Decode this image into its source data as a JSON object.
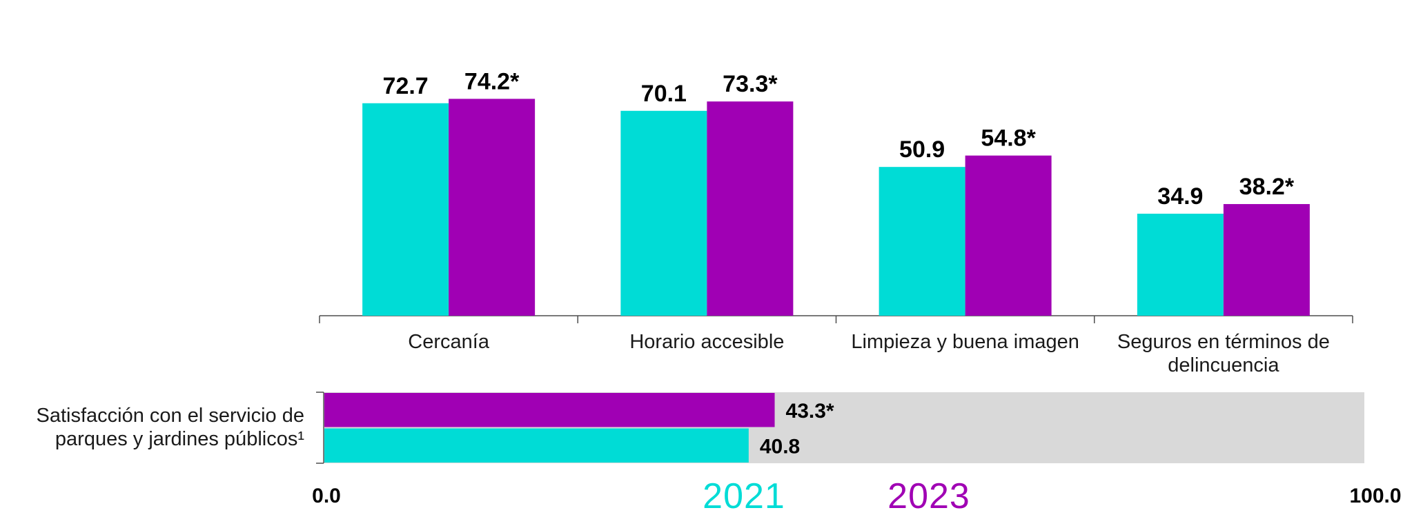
{
  "chart_data": [
    {
      "type": "bar",
      "categories": [
        [
          "Cercanía"
        ],
        [
          "Horario accesible"
        ],
        [
          "Limpieza y buena imagen"
        ],
        [
          "Seguros en términos de",
          "delincuencia"
        ]
      ],
      "series": [
        {
          "name": "2021",
          "color": "#00DCD6",
          "values": [
            72.7,
            70.1,
            50.9,
            34.9
          ],
          "labels": [
            "72.7",
            "70.1",
            "50.9",
            "34.9"
          ]
        },
        {
          "name": "2023",
          "color": "#A000B4",
          "values": [
            74.2,
            73.3,
            54.8,
            38.2
          ],
          "labels": [
            "74.2*",
            "73.3*",
            "54.8*",
            "38.2*"
          ]
        }
      ],
      "ylim": [
        0,
        100
      ],
      "grid": false,
      "legend": "bottom-center"
    },
    {
      "type": "bar",
      "orientation": "horizontal",
      "category": [
        "Satisfacción con el servicio de",
        "parques y jardines públicos¹"
      ],
      "series": [
        {
          "name": "2023",
          "color": "#A000B4",
          "value": 43.3,
          "label": "43.3*"
        },
        {
          "name": "2021",
          "color": "#00DCD6",
          "value": 40.8,
          "label": "40.8"
        }
      ],
      "background_color": "#D9D9D9",
      "xlim": [
        0,
        100
      ],
      "tick_labels": [
        "0.0",
        "100.0"
      ]
    }
  ],
  "legend": [
    {
      "label": "2021",
      "color": "#00DCD6"
    },
    {
      "label": "2023",
      "color": "#A000B4"
    }
  ]
}
